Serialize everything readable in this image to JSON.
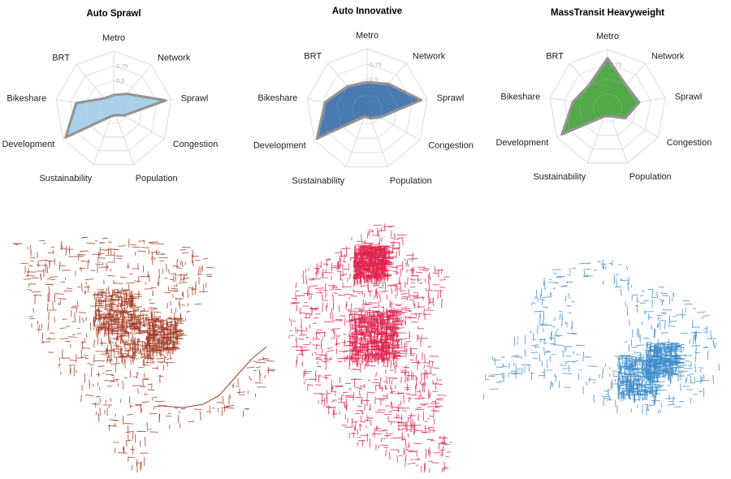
{
  "chart_data": [
    {
      "type": "radar",
      "title": "Auto Sprawl",
      "axes": [
        "Metro",
        "Network",
        "Sprawl",
        "Congestion",
        "Population",
        "Sustainability",
        "Development",
        "Bikeshare",
        "BRT"
      ],
      "tick_labels": [
        "0.25",
        "0.5",
        "0.75"
      ],
      "range": [
        0,
        1
      ],
      "values": [
        0.25,
        0.35,
        0.9,
        0.2,
        0.1,
        0.12,
        0.95,
        0.65,
        0.25
      ],
      "fill_color": "#a6cde9",
      "stroke_color": "#939393"
    },
    {
      "type": "radar",
      "title": "Auto Innovative",
      "axes": [
        "Metro",
        "Network",
        "Sprawl",
        "Congestion",
        "Population",
        "Sustainability",
        "Development",
        "Bikeshare",
        "BRT"
      ],
      "tick_labels": [
        "0.25",
        "0.5",
        "0.75"
      ],
      "range": [
        0,
        1
      ],
      "values": [
        0.45,
        0.55,
        0.9,
        0.25,
        0.15,
        0.12,
        0.95,
        0.7,
        0.5
      ],
      "fill_color": "#3f74ac",
      "stroke_color": "#939393"
    },
    {
      "type": "radar",
      "title": "MassTransit Heavyweight",
      "axes": [
        "Metro",
        "Network",
        "Sprawl",
        "Congestion",
        "Population",
        "Sustainability",
        "Development",
        "Bikeshare",
        "BRT"
      ],
      "tick_labels": [
        "0.25",
        "0.5",
        "0.75"
      ],
      "range": [
        0,
        1
      ],
      "values": [
        0.85,
        0.5,
        0.55,
        0.35,
        0.15,
        0.15,
        0.9,
        0.6,
        0.5
      ],
      "fill_color": "#4aa440",
      "stroke_color": "#939393"
    }
  ],
  "maps": [
    {
      "name": "auto-sprawl-network",
      "color": "#a33a22"
    },
    {
      "name": "auto-innovative-network",
      "color": "#e0234f"
    },
    {
      "name": "masstransit-network",
      "color": "#3d8ccc"
    }
  ]
}
